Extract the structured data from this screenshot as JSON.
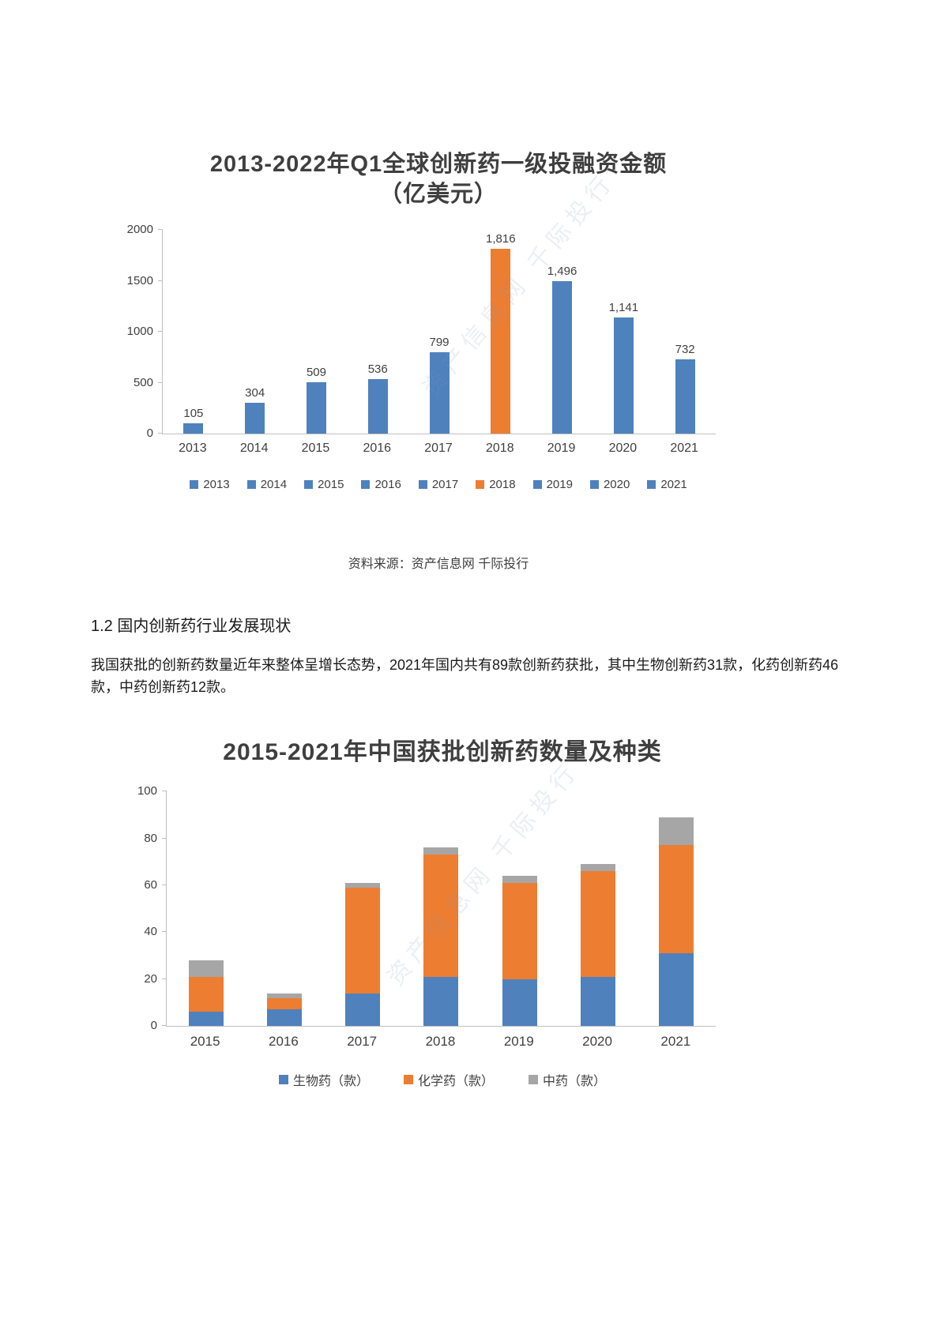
{
  "page": {
    "source_note": "资料来源：资产信息网 千际投行",
    "section_heading": "1.2 国内创新药行业发展现状",
    "paragraph": "我国获批的创新药数量近年来整体呈增长态势，2021年国内共有89款创新药获批，其中生物创新药31款，化药创新药46款，中药创新药12款。",
    "watermark": "资产信息网 千际投行"
  },
  "chart_data": [
    {
      "type": "bar",
      "title": "2013-2022年Q1全球创新药一级投融资金额",
      "subtitle": "（亿美元）",
      "categories": [
        "2013",
        "2014",
        "2015",
        "2016",
        "2017",
        "2018",
        "2019",
        "2020",
        "2021"
      ],
      "values": [
        105,
        304,
        509,
        536,
        799,
        1816,
        1496,
        1141,
        732
      ],
      "value_labels": [
        "105",
        "304",
        "509",
        "536",
        "799",
        "1,816",
        "1,496",
        "1,141",
        "732"
      ],
      "highlight_index": 5,
      "bar_color": "#4f81bd",
      "highlight_color": "#ed7d31",
      "ylim": [
        0,
        2000
      ],
      "yticks": [
        0,
        500,
        1000,
        1500,
        2000
      ],
      "grid": false,
      "legend": [
        "2013",
        "2014",
        "2015",
        "2016",
        "2017",
        "2018",
        "2019",
        "2020",
        "2021"
      ],
      "legend_position": "bottom"
    },
    {
      "type": "bar",
      "stacked": true,
      "title": "2015-2021年中国获批创新药数量及种类",
      "categories": [
        "2015",
        "2016",
        "2017",
        "2018",
        "2019",
        "2020",
        "2021"
      ],
      "series": [
        {
          "name": "生物药（款）",
          "color": "#4f81bd",
          "values": [
            6,
            7,
            14,
            21,
            20,
            21,
            31
          ]
        },
        {
          "name": "化学药（款）",
          "color": "#ed7d31",
          "values": [
            15,
            5,
            45,
            52,
            41,
            45,
            46
          ]
        },
        {
          "name": "中药（款）",
          "color": "#a6a6a6",
          "values": [
            7,
            2,
            2,
            3,
            3,
            3,
            12
          ]
        }
      ],
      "ylim": [
        0,
        100
      ],
      "yticks": [
        0,
        20,
        40,
        60,
        80,
        100
      ],
      "grid": false,
      "legend_position": "bottom"
    }
  ]
}
